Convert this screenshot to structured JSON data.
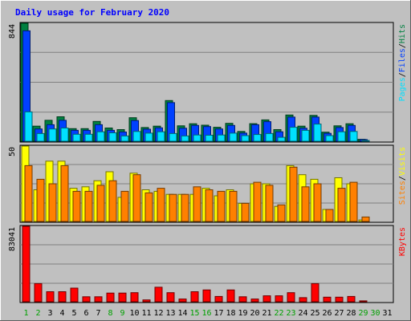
{
  "title": "Daily usage for February 2020",
  "colors": {
    "background": "#c0c0c0",
    "plot_background": "#c0c0c0",
    "title": "#0000ff",
    "hits": "#008040",
    "files": "#0040ff",
    "pages": "#00e0ff",
    "visits": "#ffff00",
    "sites": "#ff8000",
    "kbytes": "#ff0000",
    "weekend_label": "#00a000",
    "weekday_label": "#000000"
  },
  "chart_data": [
    {
      "type": "bar",
      "panel": "hits-files-pages",
      "ymax_label": "844",
      "legend": [
        "Pages",
        "/",
        "Files",
        "/",
        "Hits"
      ],
      "categories": [
        "1",
        "2",
        "3",
        "4",
        "5",
        "6",
        "7",
        "8",
        "9",
        "10",
        "11",
        "12",
        "13",
        "14",
        "15",
        "16",
        "17",
        "18",
        "19",
        "20",
        "21",
        "22",
        "23",
        "24",
        "25",
        "26",
        "27",
        "28",
        "29",
        "30",
        "31"
      ],
      "weekend_days": [
        "1",
        "2",
        "8",
        "9",
        "15",
        "16",
        "22",
        "23",
        "29",
        "30"
      ],
      "ylim": [
        0,
        844
      ],
      "series": [
        {
          "name": "Hits",
          "values": [
            844,
            108,
            150,
            175,
            90,
            90,
            142,
            95,
            83,
            168,
            98,
            108,
            291,
            110,
            125,
            115,
            100,
            128,
            70,
            126,
            153,
            83,
            188,
            108,
            185,
            65,
            110,
            125,
            14,
            0,
            0
          ]
        },
        {
          "name": "Files",
          "values": [
            790,
            88,
            118,
            150,
            78,
            78,
            118,
            78,
            66,
            148,
            86,
            96,
            276,
            93,
            113,
            105,
            88,
            113,
            58,
            118,
            140,
            68,
            173,
            93,
            173,
            56,
            98,
            113,
            12,
            0,
            0
          ]
        },
        {
          "name": "Pages",
          "values": [
            210,
            55,
            88,
            95,
            50,
            50,
            68,
            60,
            38,
            70,
            58,
            68,
            55,
            38,
            45,
            43,
            45,
            58,
            40,
            48,
            55,
            28,
            100,
            78,
            123,
            40,
            68,
            70,
            4,
            0,
            0
          ]
        }
      ]
    },
    {
      "type": "bar",
      "panel": "visits-sites",
      "ymax_label": "50",
      "legend": [
        "Sites",
        "/",
        "Visits"
      ],
      "categories": [
        "1",
        "2",
        "3",
        "4",
        "5",
        "6",
        "7",
        "8",
        "9",
        "10",
        "11",
        "12",
        "13",
        "14",
        "15",
        "16",
        "17",
        "18",
        "19",
        "20",
        "21",
        "22",
        "23",
        "24",
        "25",
        "26",
        "27",
        "28",
        "29",
        "30",
        "31"
      ],
      "ylim": [
        0,
        50
      ],
      "series": [
        {
          "name": "Visits",
          "values": [
            50,
            21,
            40,
            40,
            22,
            23,
            27,
            33,
            16,
            32,
            21,
            20,
            18,
            18,
            18,
            22,
            17,
            21,
            12,
            25,
            25,
            10,
            37,
            31,
            28,
            8,
            29,
            25,
            1,
            0,
            0
          ]
        },
        {
          "name": "Sites",
          "values": [
            37,
            28,
            25,
            37,
            20,
            20,
            24,
            27,
            20,
            31,
            19,
            22,
            18,
            18,
            23,
            21,
            20,
            20,
            12,
            26,
            24,
            11,
            36,
            23,
            25,
            8,
            22,
            26,
            3,
            0,
            0
          ]
        }
      ]
    },
    {
      "type": "bar",
      "panel": "kbytes",
      "ymax_label": "83041",
      "legend": [
        "KBytes"
      ],
      "categories": [
        "1",
        "2",
        "3",
        "4",
        "5",
        "6",
        "7",
        "8",
        "9",
        "10",
        "11",
        "12",
        "13",
        "14",
        "15",
        "16",
        "17",
        "18",
        "19",
        "20",
        "21",
        "22",
        "23",
        "24",
        "25",
        "26",
        "27",
        "28",
        "29",
        "30",
        "31"
      ],
      "ylim": [
        0,
        83041
      ],
      "series": [
        {
          "name": "KBytes",
          "values": [
            83041,
            20000,
            11000,
            11000,
            15000,
            5500,
            5500,
            9500,
            9500,
            10000,
            2000,
            16000,
            10000,
            3000,
            11000,
            13000,
            5800,
            13000,
            5500,
            3000,
            6500,
            6500,
            10000,
            4500,
            20000,
            5000,
            5000,
            5800,
            1000,
            0,
            0
          ]
        }
      ]
    }
  ]
}
